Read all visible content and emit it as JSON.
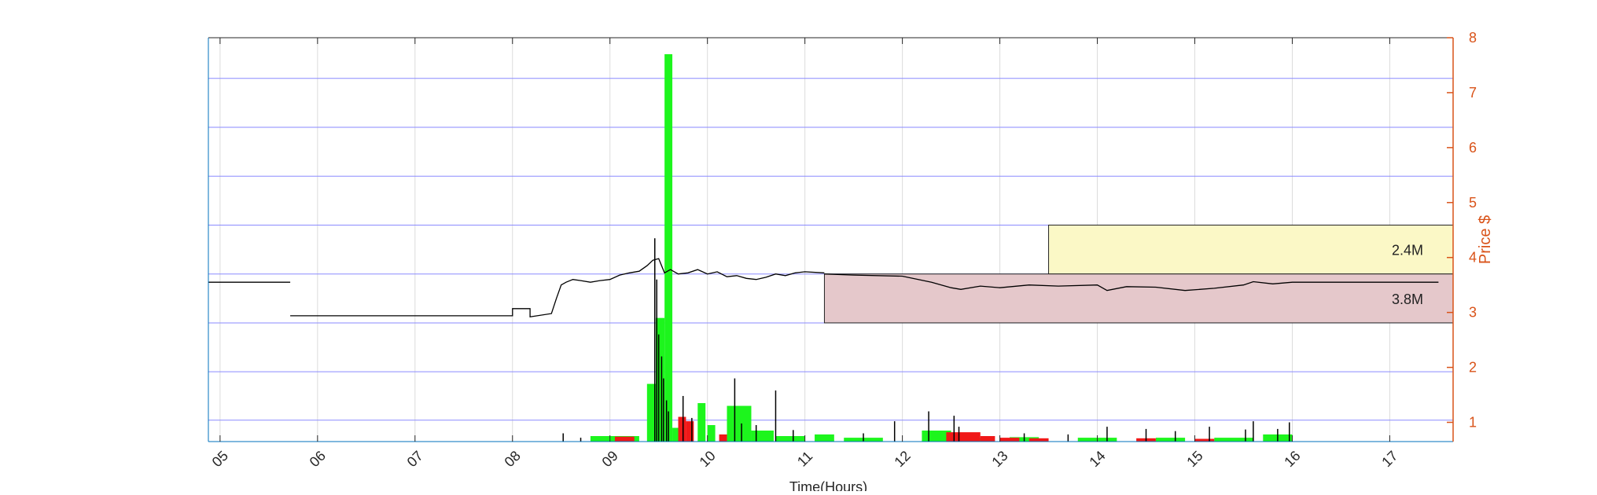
{
  "chart_data": {
    "type": "line",
    "xlabel": "Time(Hours)",
    "ylabel": "Price $",
    "xlim": [
      4.88,
      17.65
    ],
    "ylim": [
      0.65,
      8.0
    ],
    "x_ticks": [
      "05",
      "06",
      "07",
      "08",
      "09",
      "10",
      "11",
      "12",
      "13",
      "14",
      "15",
      "16",
      "17"
    ],
    "x_tick_values": [
      5,
      6,
      7,
      8,
      9,
      10,
      11,
      12,
      13,
      14,
      15,
      16,
      17
    ],
    "y_ticks": [
      "1",
      "2",
      "3",
      "4",
      "5",
      "6",
      "7",
      "8"
    ],
    "y_tick_values": [
      1,
      2,
      3,
      4,
      5,
      6,
      7,
      8
    ],
    "y_axis_side": "right",
    "horizontal_price_levels": [
      1.04,
      1.92,
      2.81,
      3.7,
      4.59,
      5.48,
      6.37,
      7.26
    ],
    "grid": true,
    "colors": {
      "axis_accent": "#d95319",
      "price_line": "#000000",
      "buy_volume": "#1df51d",
      "sell_volume": "#f01818",
      "level_lines": "#8a8aff",
      "gridlines": "#dcdcdc",
      "zone_upper_fill": "#fbf8c6",
      "zone_lower_fill": "#e5c8cb"
    },
    "zones": [
      {
        "label": "2.4M",
        "x_start": 13.5,
        "x_end": 17.65,
        "y_low": 3.7,
        "y_high": 4.59
      },
      {
        "label": "3.8M",
        "x_start": 11.2,
        "x_end": 17.65,
        "y_low": 2.81,
        "y_high": 3.7
      }
    ],
    "series": [
      {
        "kind": "price",
        "segments": [
          {
            "x": [
              4.88,
              5.72
            ],
            "y": [
              3.55,
              3.55
            ]
          },
          {
            "x": [
              5.72,
              8.0,
              8.0,
              8.18,
              8.18,
              8.4,
              8.45,
              8.5,
              8.55,
              8.62,
              8.7,
              8.8,
              8.9,
              9.0,
              9.1,
              9.2,
              9.3,
              9.38,
              9.44,
              9.5,
              9.56,
              9.62,
              9.7,
              9.8,
              9.9,
              10.0,
              10.1,
              10.2,
              10.3,
              10.4,
              10.5,
              10.6,
              10.7,
              10.8,
              10.9,
              11.0,
              11.2
            ],
            "y": [
              2.94,
              2.94,
              3.07,
              3.07,
              2.92,
              2.98,
              3.25,
              3.5,
              3.55,
              3.6,
              3.58,
              3.55,
              3.58,
              3.6,
              3.68,
              3.72,
              3.75,
              3.85,
              3.95,
              3.98,
              3.72,
              3.78,
              3.7,
              3.72,
              3.78,
              3.7,
              3.74,
              3.65,
              3.67,
              3.62,
              3.6,
              3.64,
              3.7,
              3.67,
              3.72,
              3.74,
              3.72
            ]
          },
          {
            "x": [
              11.2,
              11.5,
              12.0,
              12.3,
              12.5,
              12.6,
              12.8,
              13.0,
              13.3,
              13.6,
              14.0,
              14.1,
              14.3,
              14.6,
              14.9,
              15.2,
              15.5,
              15.6,
              15.8,
              16.0,
              17.5
            ],
            "y": [
              3.7,
              3.68,
              3.66,
              3.55,
              3.45,
              3.42,
              3.48,
              3.45,
              3.5,
              3.48,
              3.5,
              3.4,
              3.47,
              3.46,
              3.4,
              3.44,
              3.5,
              3.56,
              3.52,
              3.55,
              3.55
            ]
          }
        ]
      },
      {
        "kind": "buy_volume",
        "bars": [
          [
            9.38,
            9.47,
            1.7
          ],
          [
            9.47,
            9.56,
            2.9
          ],
          [
            9.56,
            9.64,
            7.7
          ],
          [
            9.64,
            9.7,
            0.9
          ],
          [
            9.9,
            9.98,
            1.35
          ],
          [
            10.0,
            10.08,
            0.95
          ],
          [
            10.2,
            10.45,
            1.3
          ],
          [
            10.45,
            10.68,
            0.85
          ],
          [
            8.8,
            9.3,
            0.75
          ],
          [
            10.7,
            11.0,
            0.75
          ],
          [
            11.1,
            11.3,
            0.78
          ],
          [
            11.4,
            11.8,
            0.72
          ],
          [
            12.2,
            12.5,
            0.85
          ],
          [
            12.7,
            12.9,
            0.72
          ],
          [
            13.1,
            13.4,
            0.73
          ],
          [
            13.8,
            14.2,
            0.72
          ],
          [
            14.6,
            14.9,
            0.72
          ],
          [
            15.2,
            15.6,
            0.72
          ],
          [
            15.7,
            16.0,
            0.78
          ]
        ]
      },
      {
        "kind": "sell_volume",
        "bars": [
          [
            9.05,
            9.25,
            0.74
          ],
          [
            9.7,
            9.78,
            1.1
          ],
          [
            9.78,
            9.86,
            1.02
          ],
          [
            10.12,
            10.2,
            0.78
          ],
          [
            12.45,
            12.8,
            0.82
          ],
          [
            12.8,
            12.95,
            0.75
          ],
          [
            13.0,
            13.2,
            0.72
          ],
          [
            13.3,
            13.5,
            0.71
          ],
          [
            14.4,
            14.6,
            0.71
          ],
          [
            15.0,
            15.2,
            0.7
          ]
        ]
      },
      {
        "kind": "trade_spikes",
        "spikes": [
          [
            8.52,
            0.8
          ],
          [
            8.7,
            0.72
          ],
          [
            9.46,
            4.35
          ],
          [
            9.48,
            3.6
          ],
          [
            9.5,
            2.6
          ],
          [
            9.53,
            2.2
          ],
          [
            9.55,
            1.8
          ],
          [
            9.58,
            1.4
          ],
          [
            9.6,
            1.2
          ],
          [
            9.75,
            1.48
          ],
          [
            9.84,
            1.08
          ],
          [
            10.28,
            1.8
          ],
          [
            10.35,
            0.98
          ],
          [
            10.5,
            0.95
          ],
          [
            10.7,
            1.58
          ],
          [
            10.88,
            0.86
          ],
          [
            11.6,
            0.8
          ],
          [
            11.92,
            1.02
          ],
          [
            12.27,
            1.2
          ],
          [
            12.53,
            1.12
          ],
          [
            12.58,
            0.92
          ],
          [
            13.25,
            0.8
          ],
          [
            13.7,
            0.78
          ],
          [
            14.1,
            0.92
          ],
          [
            14.5,
            0.88
          ],
          [
            14.8,
            0.84
          ],
          [
            15.15,
            0.92
          ],
          [
            15.52,
            0.87
          ],
          [
            15.6,
            1.02
          ],
          [
            15.85,
            0.88
          ],
          [
            15.97,
            1.0
          ]
        ]
      }
    ]
  }
}
